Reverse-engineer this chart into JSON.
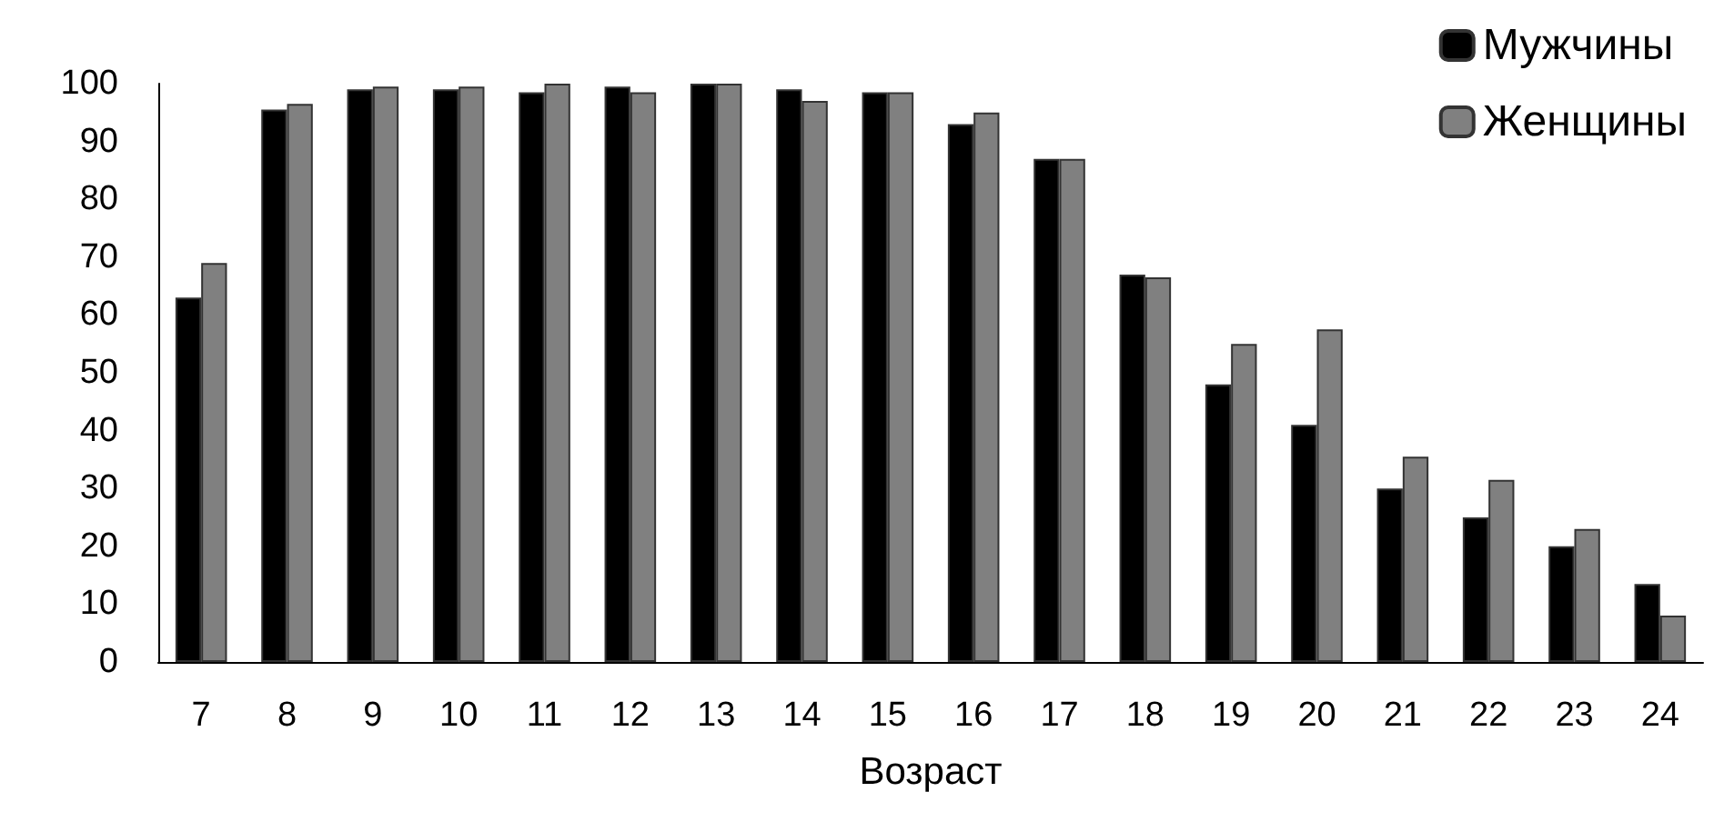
{
  "chart_data": {
    "type": "bar",
    "xlabel": "Возраст",
    "categories": [
      "7",
      "8",
      "9",
      "10",
      "11",
      "12",
      "13",
      "14",
      "15",
      "16",
      "17",
      "18",
      "19",
      "20",
      "21",
      "22",
      "23",
      "24"
    ],
    "series": [
      {
        "name": "Мужчины",
        "color": "#000000",
        "values": [
          63,
          95.5,
          99,
          99,
          98.5,
          99.5,
          100,
          99,
          98.5,
          93,
          87,
          67,
          48,
          41,
          30,
          25,
          20,
          13.5
        ]
      },
      {
        "name": "Женщины",
        "color": "#808080",
        "values": [
          69,
          96.5,
          99.5,
          99.5,
          100,
          98.5,
          100,
          97,
          98.5,
          95,
          87,
          66.5,
          55,
          57.5,
          35.5,
          31.5,
          23,
          8
        ]
      }
    ],
    "ylim": [
      0,
      100
    ],
    "yticks": [
      0,
      10,
      20,
      30,
      40,
      50,
      60,
      70,
      80,
      90,
      100
    ],
    "grid": false,
    "legend": "top right"
  }
}
